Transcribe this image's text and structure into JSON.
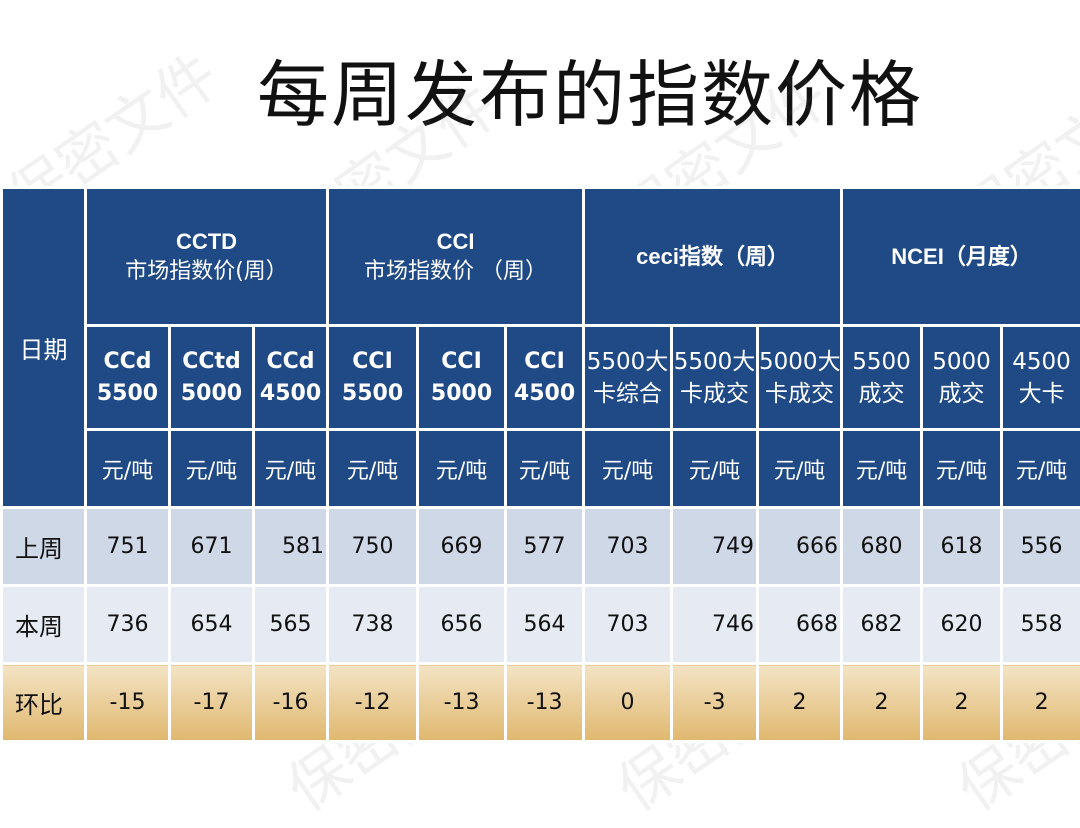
{
  "title": "每周发布的指数价格",
  "watermark_text": "保密文件",
  "header": {
    "date_label": "日期",
    "groups": [
      {
        "name": "CCTD",
        "subtitle": "市场指数价(周）"
      },
      {
        "name": "CCI",
        "subtitle": "市场指数价 （周）"
      },
      {
        "name": "ceci指数（周）"
      },
      {
        "name": "NCEI（月度）"
      }
    ],
    "columns": [
      {
        "line1": "CCd",
        "line2": "5500"
      },
      {
        "line1": "CCtd",
        "line2": "5000"
      },
      {
        "line1": "CCd",
        "line2": "4500"
      },
      {
        "line1": "CCI",
        "line2": "5500"
      },
      {
        "line1": "CCI",
        "line2": "5000"
      },
      {
        "line1": "CCI",
        "line2": "4500"
      },
      {
        "line1": "5500大",
        "line2": "卡综合"
      },
      {
        "line1": "5500大",
        "line2": "卡成交"
      },
      {
        "line1": "5000大",
        "line2": "卡成交"
      },
      {
        "line1": "5500",
        "line2": "成交"
      },
      {
        "line1": "5000",
        "line2": "成交"
      },
      {
        "line1": "4500",
        "line2": "大卡"
      }
    ],
    "unit": "元/吨"
  },
  "rows": [
    {
      "label": "上周",
      "values": [
        "751",
        "671",
        "581",
        "750",
        "669",
        "577",
        "703",
        "749",
        "666",
        "680",
        "618",
        "556"
      ]
    },
    {
      "label": "本周",
      "values": [
        "736",
        "654",
        "565",
        "738",
        "656",
        "564",
        "703",
        "746",
        "668",
        "682",
        "620",
        "558"
      ]
    },
    {
      "label": "环比",
      "values": [
        "-15",
        "-17",
        "-16",
        "-12",
        "-13",
        "-13",
        "0",
        "-3",
        "2",
        "2",
        "2",
        "2"
      ]
    }
  ],
  "colors": {
    "header_bg": "#1f4a86",
    "row1_bg": "#cfd8e6",
    "row2_bg": "#e6ebf3",
    "row3_bg": "#e0b86f"
  }
}
